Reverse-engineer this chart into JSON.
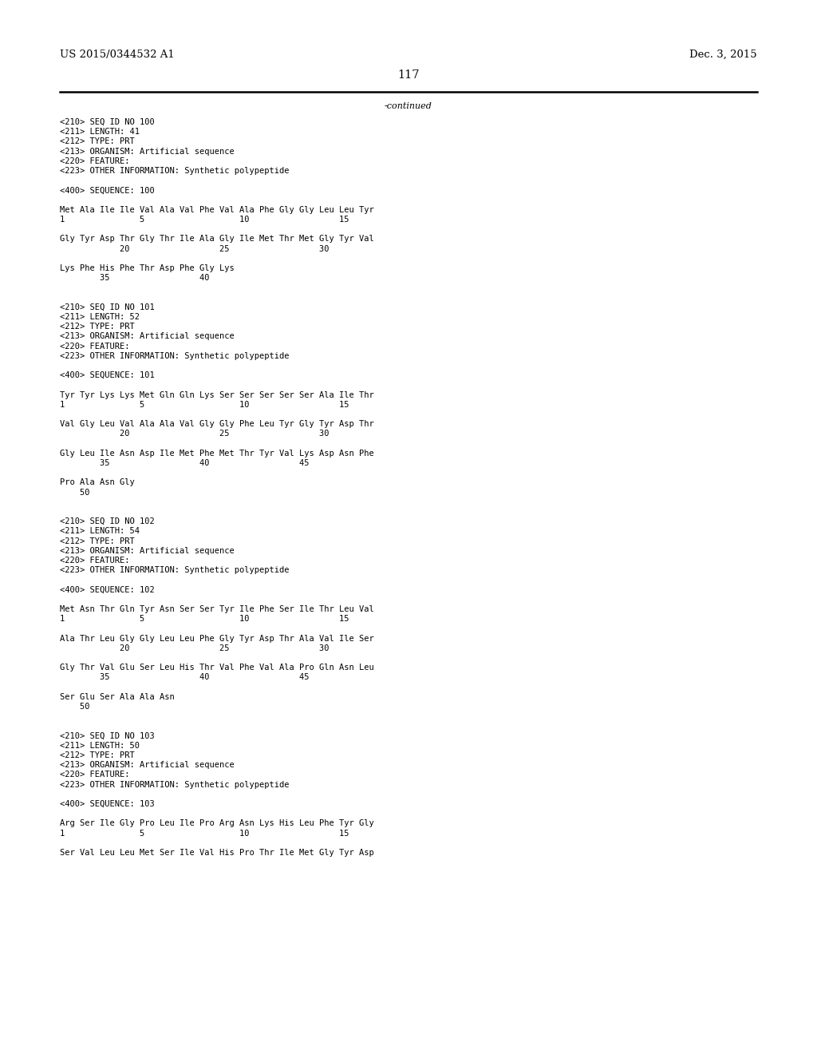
{
  "header_left": "US 2015/0344532 A1",
  "header_right": "Dec. 3, 2015",
  "page_number": "117",
  "continued_text": "-continued",
  "background_color": "#ffffff",
  "text_color": "#000000",
  "font_size_header": 9.5,
  "font_size_page": 10.5,
  "font_size_body": 7.5,
  "content": [
    "<210> SEQ ID NO 100",
    "<211> LENGTH: 41",
    "<212> TYPE: PRT",
    "<213> ORGANISM: Artificial sequence",
    "<220> FEATURE:",
    "<223> OTHER INFORMATION: Synthetic polypeptide",
    "",
    "<400> SEQUENCE: 100",
    "",
    "Met Ala Ile Ile Val Ala Val Phe Val Ala Phe Gly Gly Leu Leu Tyr",
    "1               5                   10                  15",
    "",
    "Gly Tyr Asp Thr Gly Thr Ile Ala Gly Ile Met Thr Met Gly Tyr Val",
    "            20                  25                  30",
    "",
    "Lys Phe His Phe Thr Asp Phe Gly Lys",
    "        35                  40",
    "",
    "",
    "<210> SEQ ID NO 101",
    "<211> LENGTH: 52",
    "<212> TYPE: PRT",
    "<213> ORGANISM: Artificial sequence",
    "<220> FEATURE:",
    "<223> OTHER INFORMATION: Synthetic polypeptide",
    "",
    "<400> SEQUENCE: 101",
    "",
    "Tyr Tyr Lys Lys Met Gln Gln Lys Ser Ser Ser Ser Ser Ala Ile Thr",
    "1               5                   10                  15",
    "",
    "Val Gly Leu Val Ala Ala Val Gly Gly Phe Leu Tyr Gly Tyr Asp Thr",
    "            20                  25                  30",
    "",
    "Gly Leu Ile Asn Asp Ile Met Phe Met Thr Tyr Val Lys Asp Asn Phe",
    "        35                  40                  45",
    "",
    "Pro Ala Asn Gly",
    "    50",
    "",
    "",
    "<210> SEQ ID NO 102",
    "<211> LENGTH: 54",
    "<212> TYPE: PRT",
    "<213> ORGANISM: Artificial sequence",
    "<220> FEATURE:",
    "<223> OTHER INFORMATION: Synthetic polypeptide",
    "",
    "<400> SEQUENCE: 102",
    "",
    "Met Asn Thr Gln Tyr Asn Ser Ser Tyr Ile Phe Ser Ile Thr Leu Val",
    "1               5                   10                  15",
    "",
    "Ala Thr Leu Gly Gly Leu Leu Phe Gly Tyr Asp Thr Ala Val Ile Ser",
    "            20                  25                  30",
    "",
    "Gly Thr Val Glu Ser Leu His Thr Val Phe Val Ala Pro Gln Asn Leu",
    "        35                  40                  45",
    "",
    "Ser Glu Ser Ala Ala Asn",
    "    50",
    "",
    "",
    "<210> SEQ ID NO 103",
    "<211> LENGTH: 50",
    "<212> TYPE: PRT",
    "<213> ORGANISM: Artificial sequence",
    "<220> FEATURE:",
    "<223> OTHER INFORMATION: Synthetic polypeptide",
    "",
    "<400> SEQUENCE: 103",
    "",
    "Arg Ser Ile Gly Pro Leu Ile Pro Arg Asn Lys His Leu Phe Tyr Gly",
    "1               5                   10                  15",
    "",
    "Ser Val Leu Leu Met Ser Ile Val His Pro Thr Ile Met Gly Tyr Asp"
  ]
}
